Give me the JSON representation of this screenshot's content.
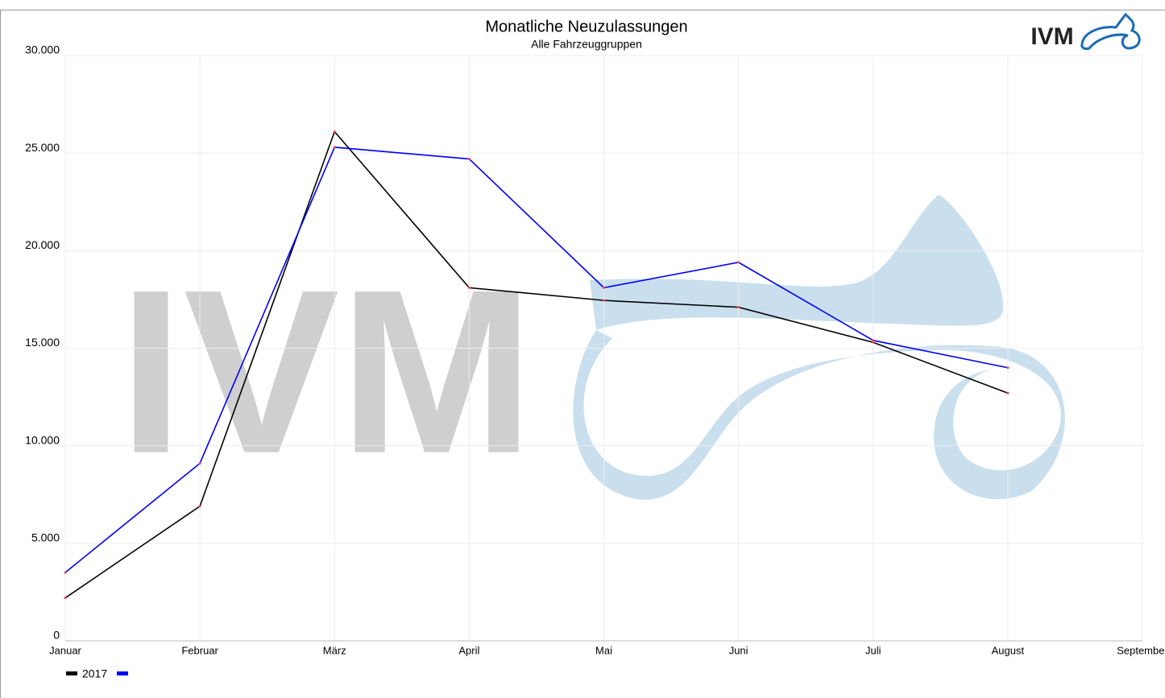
{
  "chart_data": {
    "type": "line",
    "title": "Monatliche Neuzulassungen",
    "subtitle": "Alle Fahrzeuggruppen",
    "logo": "IVM",
    "watermark": "IVM",
    "categories": [
      "Januar",
      "Februar",
      "März",
      "April",
      "Mai",
      "Juni",
      "Juli",
      "August",
      "September"
    ],
    "series": [
      {
        "name": "2017",
        "color": "#000000",
        "values": [
          2200,
          6900,
          26100,
          18100,
          17450,
          17100,
          15300,
          12700,
          null
        ]
      },
      {
        "color": "#0000ff",
        "values": [
          3500,
          9100,
          25300,
          24700,
          18100,
          19400,
          15400,
          14000,
          null
        ]
      }
    ],
    "ylim": [
      0,
      30000
    ],
    "yticks": [
      0,
      {
        "value": 5000,
        "label": "5.000"
      },
      {
        "value": 10000,
        "label": "10.000"
      },
      {
        "value": 15000,
        "label": "15.000"
      },
      {
        "value": 20000,
        "label": "20.000"
      },
      {
        "value": 25000,
        "label": "25.000"
      },
      {
        "value": 30000,
        "label": "30.000"
      }
    ],
    "grid": true
  }
}
